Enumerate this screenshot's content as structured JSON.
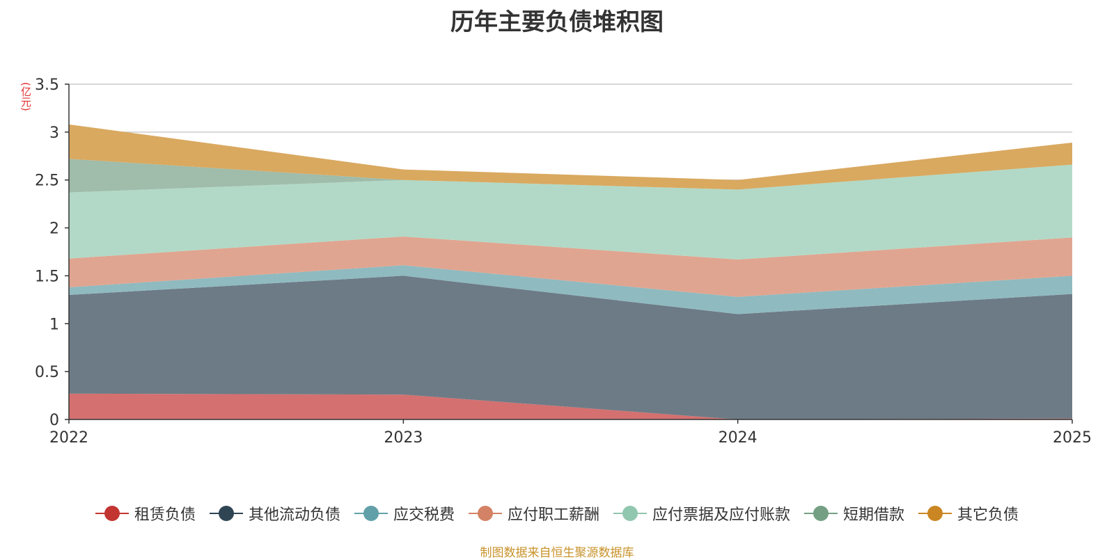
{
  "chart_data": {
    "type": "area",
    "title": "历年主要负债堆积图",
    "ylabel": "(亿元)",
    "xlabel": "",
    "categories": [
      "2022",
      "2023",
      "2024",
      "2025"
    ],
    "ylim": [
      0,
      3.5
    ],
    "yticks": [
      "0",
      "0.5",
      "1",
      "1.5",
      "2",
      "2.5",
      "3",
      "3.5"
    ],
    "stacked": true,
    "grid": true,
    "legend_position": "bottom",
    "series": [
      {
        "name": "租赁负债",
        "values": [
          0.27,
          0.26,
          0.0,
          0.01
        ],
        "color": "#c23531",
        "fill": "#d47070"
      },
      {
        "name": "其他流动负债",
        "values": [
          1.03,
          1.24,
          1.1,
          1.3
        ],
        "color": "#2f4554",
        "fill": "#6d7b86"
      },
      {
        "name": "应交税费",
        "values": [
          0.08,
          0.11,
          0.18,
          0.19
        ],
        "color": "#61a0a8",
        "fill": "#8fbac0"
      },
      {
        "name": "应付职工薪酬",
        "values": [
          0.3,
          0.3,
          0.39,
          0.4
        ],
        "color": "#d48265",
        "fill": "#e0a590"
      },
      {
        "name": "应付票据及应付账款",
        "values": [
          0.69,
          0.59,
          0.73,
          0.76
        ],
        "color": "#91c7ae",
        "fill": "#b2d9c7"
      },
      {
        "name": "短期借款",
        "values": [
          0.35,
          0.0,
          0.0,
          0.0
        ],
        "color": "#749f83",
        "fill": "#a0bcaa"
      },
      {
        "name": "其它负债",
        "values": [
          0.36,
          0.11,
          0.1,
          0.23
        ],
        "color": "#ca8622",
        "fill": "#d9a960"
      }
    ]
  },
  "source_note": "制图数据来自恒生聚源数据库"
}
